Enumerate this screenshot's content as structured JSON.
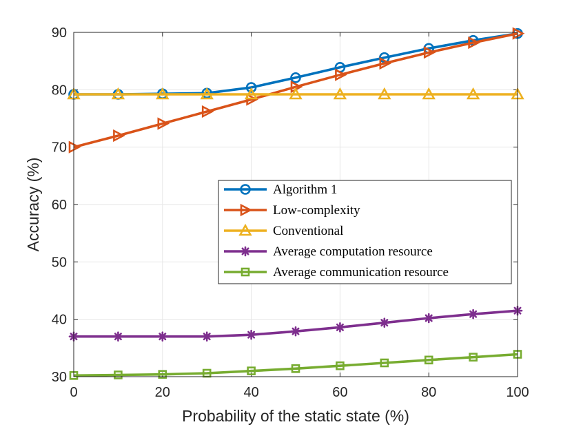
{
  "chart_data": {
    "type": "line",
    "title": "",
    "xlabel": "Probability of the static state (%)",
    "ylabel": "Accuracy (%)",
    "xlim": [
      0,
      100
    ],
    "ylim": [
      30,
      90
    ],
    "xticks": [
      0,
      20,
      40,
      60,
      80,
      100
    ],
    "yticks": [
      30,
      40,
      50,
      60,
      70,
      80,
      90
    ],
    "grid": true,
    "legend_position": "center-right",
    "x": [
      0,
      10,
      20,
      30,
      40,
      50,
      60,
      70,
      80,
      90,
      100
    ],
    "series": [
      {
        "name": "Algorithm 1",
        "color": "#0072BD",
        "marker": "circle",
        "values": [
          79.2,
          79.2,
          79.3,
          79.4,
          80.4,
          82.1,
          83.9,
          85.6,
          87.2,
          88.6,
          89.8
        ]
      },
      {
        "name": "Low-complexity",
        "color": "#D95319",
        "marker": "triangle-right",
        "values": [
          70.0,
          72.0,
          74.1,
          76.2,
          78.3,
          80.5,
          82.6,
          84.6,
          86.5,
          88.2,
          89.8
        ]
      },
      {
        "name": "Conventional",
        "color": "#EDB120",
        "marker": "triangle-up",
        "values": [
          79.2,
          79.2,
          79.2,
          79.2,
          79.2,
          79.2,
          79.2,
          79.2,
          79.2,
          79.2,
          79.2
        ]
      },
      {
        "name": "Average computation resource",
        "color": "#7E2F8E",
        "marker": "asterisk",
        "values": [
          37.0,
          37.0,
          37.0,
          37.0,
          37.3,
          37.9,
          38.6,
          39.4,
          40.2,
          40.9,
          41.5
        ]
      },
      {
        "name": "Average communication resource",
        "color": "#77AC30",
        "marker": "square",
        "values": [
          30.2,
          30.3,
          30.4,
          30.6,
          31.0,
          31.4,
          31.9,
          32.4,
          32.9,
          33.4,
          33.9
        ]
      }
    ]
  }
}
